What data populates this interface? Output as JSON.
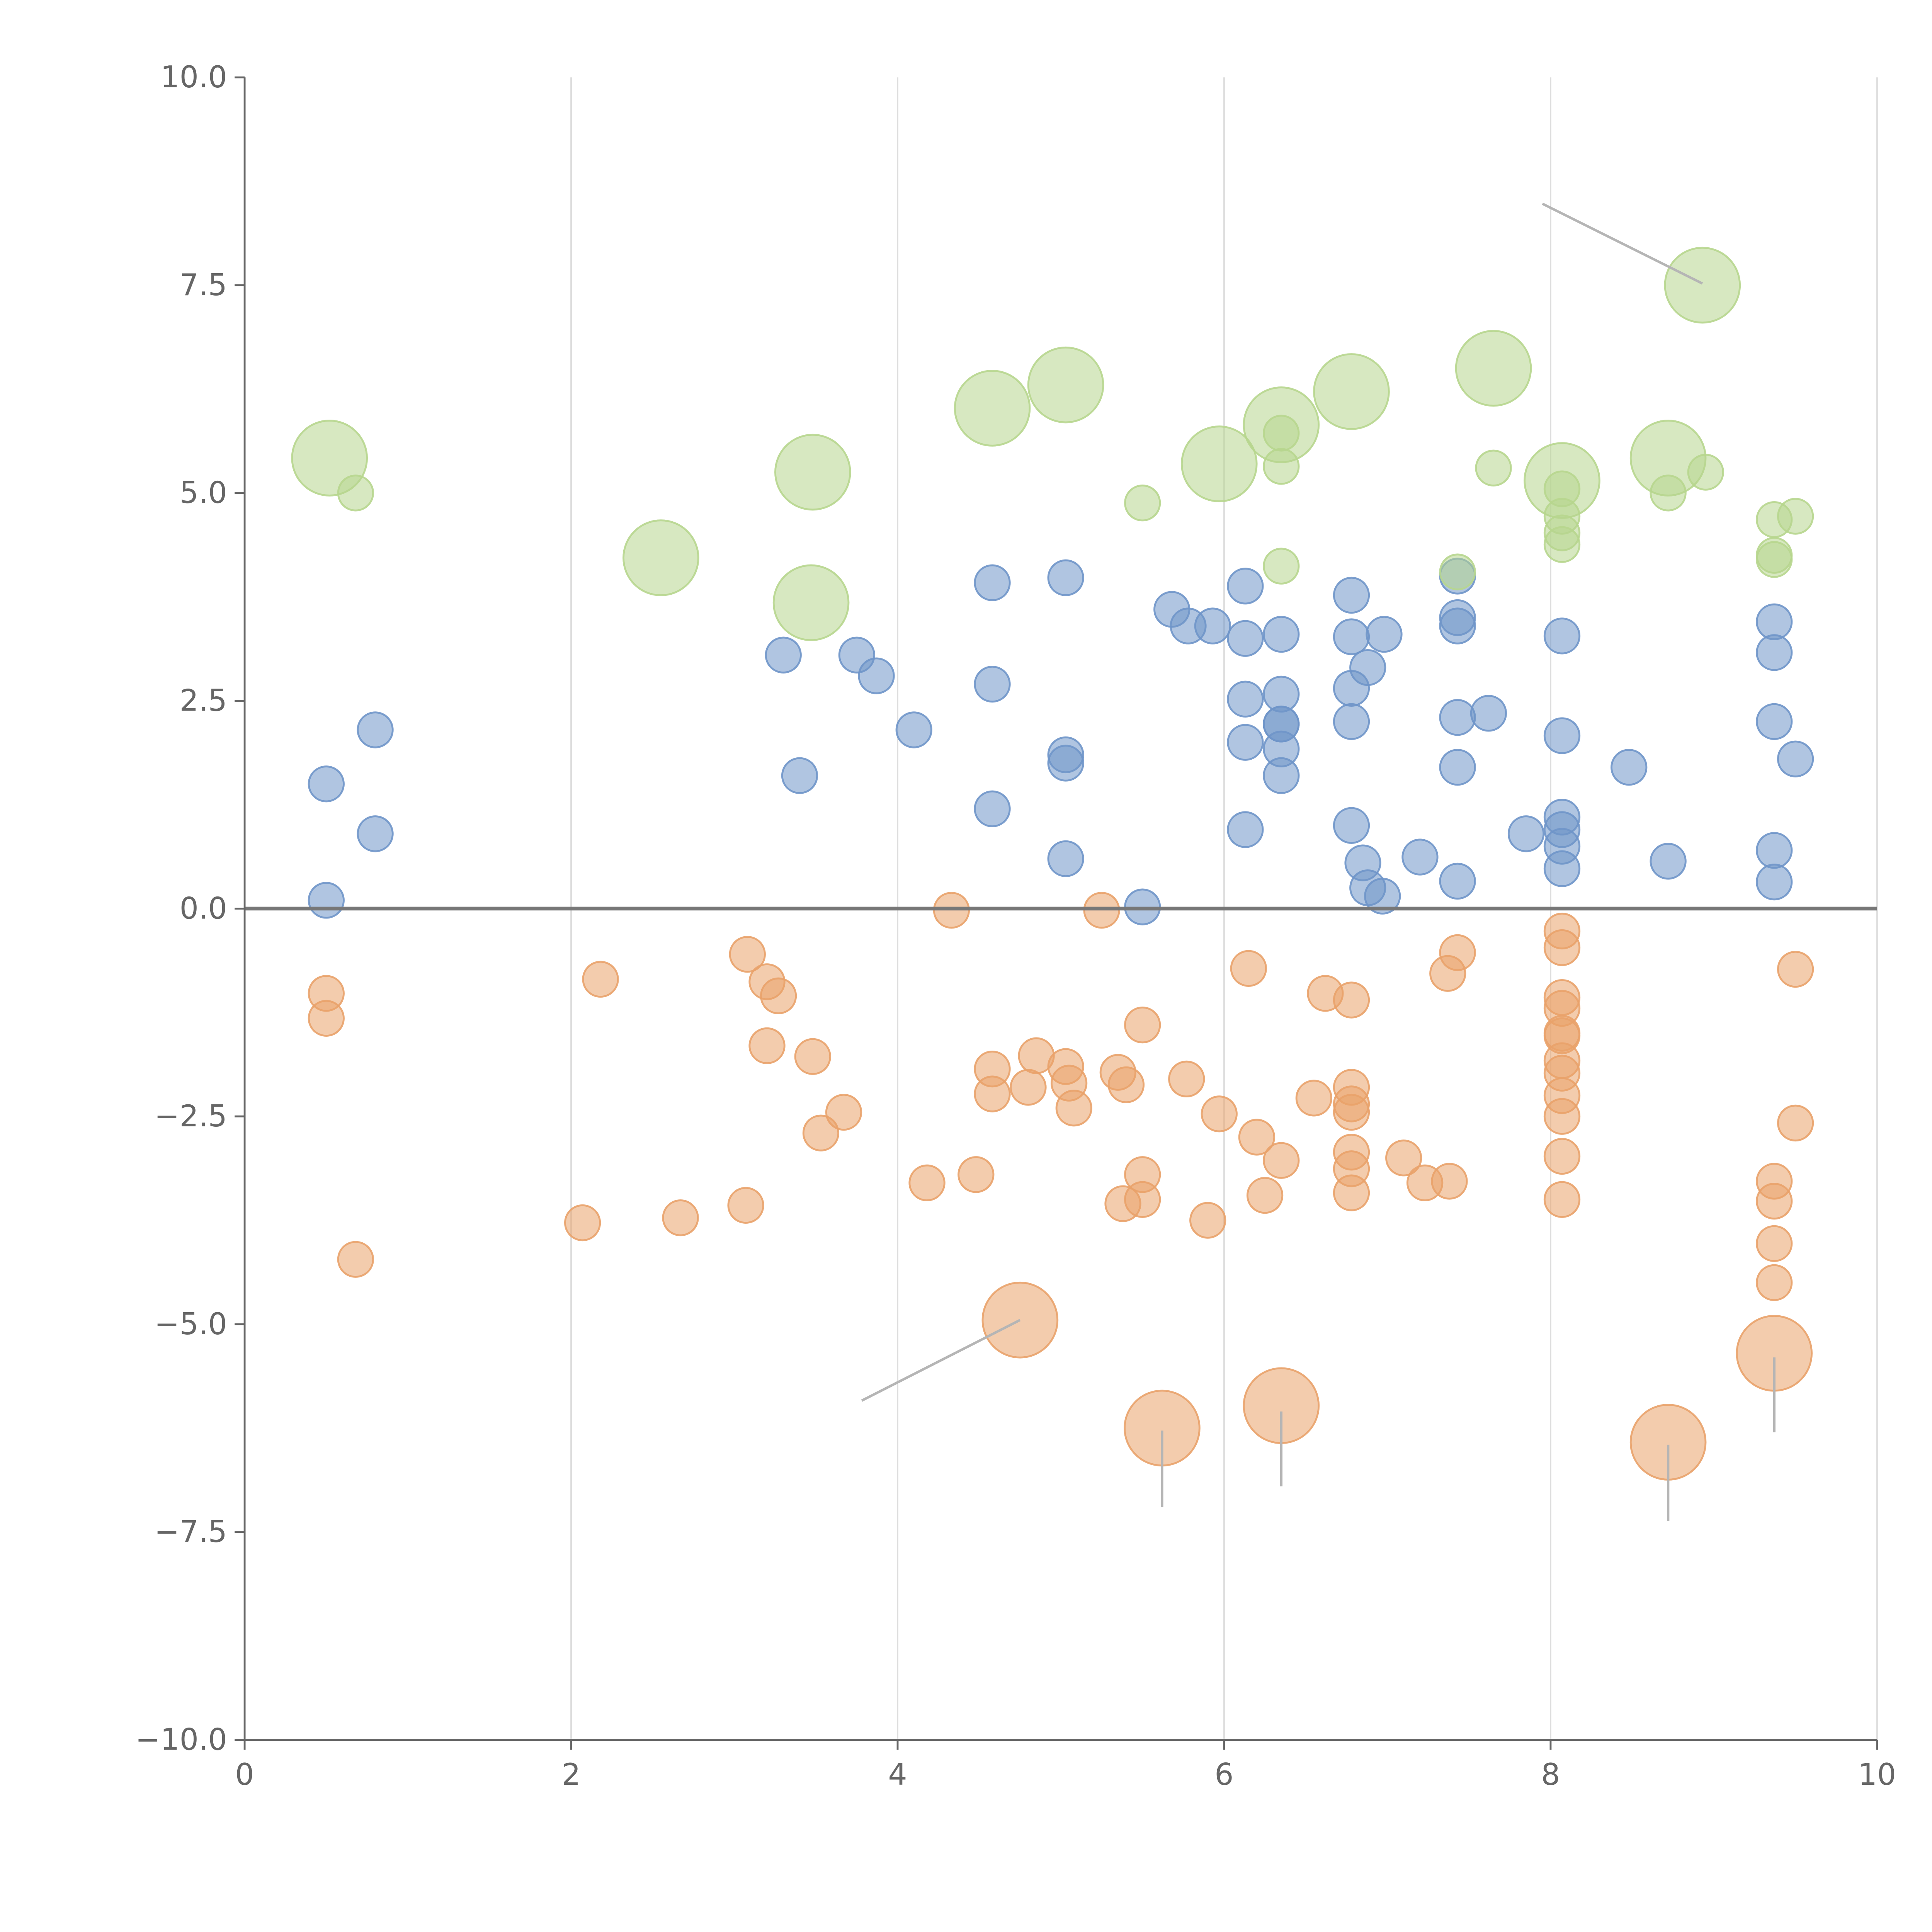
{
  "chart_data": {
    "type": "scatter",
    "title": "",
    "xlabel": "",
    "ylabel": "",
    "xlim": [
      0,
      10
    ],
    "ylim": [
      -10,
      10
    ],
    "grid": "vertical",
    "x_ticks": [
      0,
      2,
      4,
      6,
      8,
      10
    ],
    "x_tick_labels": [
      "0",
      "2",
      "4",
      "6",
      "8",
      "10"
    ],
    "y_ticks": [
      -10,
      -7.5,
      -5,
      -2.5,
      0,
      2.5,
      5,
      7.5,
      10
    ],
    "y_tick_labels": [
      "−10.0",
      "−7.5",
      "−5.0",
      "−2.5",
      "0.0",
      "2.5",
      "5.0",
      "7.5",
      "10.0"
    ],
    "series": [
      {
        "name": "blue",
        "color": "#6f95c9",
        "points": [
          [
            0.5,
            1.5,
            1
          ],
          [
            0.8,
            2.15,
            1
          ],
          [
            0.8,
            0.9,
            1
          ],
          [
            0.5,
            0.1,
            1
          ],
          [
            3.3,
            3.05,
            1
          ],
          [
            3.4,
            1.6,
            1
          ],
          [
            3.75,
            3.05,
            1
          ],
          [
            3.87,
            2.8,
            1
          ],
          [
            4.1,
            2.15,
            1
          ],
          [
            4.58,
            3.92,
            1
          ],
          [
            4.58,
            2.7,
            1
          ],
          [
            4.58,
            1.2,
            1
          ],
          [
            5.03,
            3.98,
            1
          ],
          [
            5.03,
            1.85,
            1
          ],
          [
            5.03,
            1.75,
            1
          ],
          [
            5.03,
            0.6,
            1
          ],
          [
            5.5,
            0.02,
            1
          ],
          [
            5.68,
            3.6,
            1
          ],
          [
            5.78,
            3.4,
            1
          ],
          [
            5.93,
            3.4,
            1
          ],
          [
            6.13,
            3.88,
            1
          ],
          [
            6.13,
            3.25,
            1
          ],
          [
            6.13,
            2.52,
            1
          ],
          [
            6.13,
            2.0,
            1
          ],
          [
            6.13,
            0.95,
            1
          ],
          [
            6.35,
            3.3,
            1
          ],
          [
            6.35,
            2.58,
            1
          ],
          [
            6.35,
            2.22,
            1
          ],
          [
            6.35,
            2.22,
            1
          ],
          [
            6.35,
            1.92,
            1
          ],
          [
            6.35,
            1.6,
            1
          ],
          [
            6.78,
            3.77,
            1
          ],
          [
            6.78,
            3.27,
            1
          ],
          [
            6.78,
            2.65,
            1
          ],
          [
            6.78,
            2.25,
            1
          ],
          [
            6.78,
            1.0,
            1
          ],
          [
            6.88,
            2.9,
            1
          ],
          [
            6.98,
            3.3,
            1
          ],
          [
            6.85,
            0.55,
            1
          ],
          [
            6.88,
            0.25,
            1
          ],
          [
            6.97,
            0.15,
            1
          ],
          [
            7.2,
            0.62,
            1
          ],
          [
            7.43,
            4.0,
            1
          ],
          [
            7.43,
            3.5,
            1
          ],
          [
            7.43,
            3.4,
            1
          ],
          [
            7.43,
            2.3,
            1
          ],
          [
            7.43,
            1.7,
            1
          ],
          [
            7.43,
            0.33,
            1
          ],
          [
            7.62,
            2.35,
            1
          ],
          [
            7.85,
            0.9,
            1
          ],
          [
            8.07,
            3.28,
            1
          ],
          [
            8.07,
            2.08,
            1
          ],
          [
            8.07,
            1.1,
            1
          ],
          [
            8.07,
            0.95,
            1
          ],
          [
            8.07,
            0.75,
            1
          ],
          [
            8.07,
            0.48,
            1
          ],
          [
            8.48,
            1.7,
            1
          ],
          [
            8.72,
            0.57,
            1
          ],
          [
            9.37,
            3.45,
            1
          ],
          [
            9.37,
            3.08,
            1
          ],
          [
            9.37,
            2.25,
            1
          ],
          [
            9.37,
            0.7,
            1
          ],
          [
            9.37,
            0.32,
            1
          ],
          [
            9.5,
            1.8,
            1
          ]
        ]
      },
      {
        "name": "orange",
        "color": "#e9a26a",
        "points": [
          [
            0.5,
            -1.02,
            1
          ],
          [
            0.5,
            -1.32,
            1
          ],
          [
            0.68,
            -4.22,
            1
          ],
          [
            2.07,
            -3.78,
            1
          ],
          [
            2.18,
            -0.85,
            1
          ],
          [
            2.67,
            -3.72,
            1
          ],
          [
            3.07,
            -3.57,
            1
          ],
          [
            3.08,
            -0.55,
            1
          ],
          [
            3.2,
            -0.88,
            1
          ],
          [
            3.27,
            -1.05,
            1
          ],
          [
            3.2,
            -1.65,
            1
          ],
          [
            3.48,
            -1.78,
            1
          ],
          [
            3.53,
            -2.7,
            1
          ],
          [
            3.67,
            -2.45,
            1
          ],
          [
            4.18,
            -3.3,
            1
          ],
          [
            4.33,
            -0.02,
            1
          ],
          [
            4.48,
            -3.2,
            1
          ],
          [
            4.58,
            -1.93,
            1
          ],
          [
            4.58,
            -2.23,
            1
          ],
          [
            4.8,
            -2.15,
            1
          ],
          [
            4.85,
            -1.77,
            1
          ],
          [
            5.03,
            -1.9,
            1
          ],
          [
            5.05,
            -2.1,
            1
          ],
          [
            5.08,
            -2.4,
            1
          ],
          [
            5.25,
            -0.02,
            1
          ],
          [
            5.35,
            -1.97,
            1
          ],
          [
            5.4,
            -2.12,
            1
          ],
          [
            5.38,
            -3.55,
            1
          ],
          [
            5.5,
            -3.2,
            1
          ],
          [
            5.5,
            -3.5,
            1
          ],
          [
            5.5,
            -1.4,
            1
          ],
          [
            5.77,
            -2.05,
            1
          ],
          [
            5.9,
            -3.75,
            1
          ],
          [
            5.97,
            -2.47,
            1
          ],
          [
            6.15,
            -0.72,
            1
          ],
          [
            6.2,
            -2.75,
            1
          ],
          [
            6.25,
            -3.45,
            1
          ],
          [
            6.35,
            -3.03,
            1
          ],
          [
            6.55,
            -2.28,
            1
          ],
          [
            6.62,
            -1.02,
            1
          ],
          [
            6.78,
            -1.1,
            1
          ],
          [
            6.78,
            -2.15,
            1
          ],
          [
            6.78,
            -2.35,
            1
          ],
          [
            6.78,
            -2.45,
            1
          ],
          [
            6.78,
            -2.93,
            1
          ],
          [
            6.78,
            -3.13,
            1
          ],
          [
            6.78,
            -3.42,
            1
          ],
          [
            7.1,
            -3.0,
            1
          ],
          [
            7.23,
            -3.3,
            1
          ],
          [
            7.37,
            -0.78,
            1
          ],
          [
            7.38,
            -3.28,
            1
          ],
          [
            7.43,
            -0.53,
            1
          ],
          [
            8.07,
            -0.27,
            1
          ],
          [
            8.07,
            -0.47,
            1
          ],
          [
            8.07,
            -1.07,
            1
          ],
          [
            8.07,
            -1.2,
            1
          ],
          [
            8.07,
            -1.5,
            1
          ],
          [
            8.07,
            -1.53,
            1
          ],
          [
            8.07,
            -1.83,
            1
          ],
          [
            8.07,
            -1.98,
            1
          ],
          [
            8.07,
            -2.25,
            1
          ],
          [
            8.07,
            -2.5,
            1
          ],
          [
            8.07,
            -2.98,
            1
          ],
          [
            8.07,
            -3.5,
            1
          ],
          [
            9.37,
            -3.28,
            1
          ],
          [
            9.37,
            -3.52,
            1
          ],
          [
            9.37,
            -4.03,
            1
          ],
          [
            9.37,
            -4.5,
            1
          ],
          [
            9.5,
            -0.73,
            1
          ],
          [
            9.5,
            -2.58,
            1
          ],
          [
            4.75,
            -4.95,
            3
          ],
          [
            5.62,
            -6.25,
            3
          ],
          [
            6.35,
            -5.98,
            3
          ],
          [
            8.72,
            -6.42,
            3
          ],
          [
            9.37,
            -5.35,
            3
          ]
        ]
      },
      {
        "name": "green",
        "color": "#b7d68e",
        "points": [
          [
            0.52,
            5.42,
            3
          ],
          [
            0.68,
            5.0,
            1
          ],
          [
            2.55,
            4.22,
            3
          ],
          [
            3.48,
            5.25,
            3
          ],
          [
            3.47,
            3.68,
            3
          ],
          [
            4.58,
            6.02,
            3
          ],
          [
            5.03,
            6.3,
            3
          ],
          [
            5.5,
            4.88,
            1
          ],
          [
            5.97,
            5.35,
            3
          ],
          [
            6.35,
            5.82,
            3
          ],
          [
            6.35,
            5.72,
            1
          ],
          [
            6.35,
            5.32,
            1
          ],
          [
            6.35,
            4.12,
            1
          ],
          [
            6.78,
            6.22,
            3
          ],
          [
            7.43,
            4.05,
            1
          ],
          [
            7.65,
            6.5,
            3
          ],
          [
            7.65,
            5.3,
            1
          ],
          [
            8.07,
            5.15,
            3
          ],
          [
            8.07,
            5.05,
            1
          ],
          [
            8.07,
            4.72,
            1
          ],
          [
            8.07,
            4.52,
            1
          ],
          [
            8.07,
            4.38,
            1
          ],
          [
            8.72,
            5.42,
            3
          ],
          [
            8.72,
            5.0,
            1
          ],
          [
            8.95,
            5.25,
            1
          ],
          [
            8.93,
            7.5,
            3
          ],
          [
            9.37,
            4.68,
            1
          ],
          [
            9.37,
            4.25,
            1
          ],
          [
            9.37,
            4.2,
            1
          ],
          [
            9.5,
            4.72,
            1
          ]
        ]
      }
    ],
    "leader_lines": [
      [
        7.95,
        8.48,
        8.93,
        7.52
      ],
      [
        4.75,
        -4.95,
        3.78,
        -5.92
      ],
      [
        5.62,
        -6.28,
        5.62,
        -7.2
      ],
      [
        6.35,
        -6.05,
        6.35,
        -6.95
      ],
      [
        8.72,
        -6.45,
        8.72,
        -7.37
      ],
      [
        9.37,
        -5.4,
        9.37,
        -6.3
      ]
    ]
  }
}
